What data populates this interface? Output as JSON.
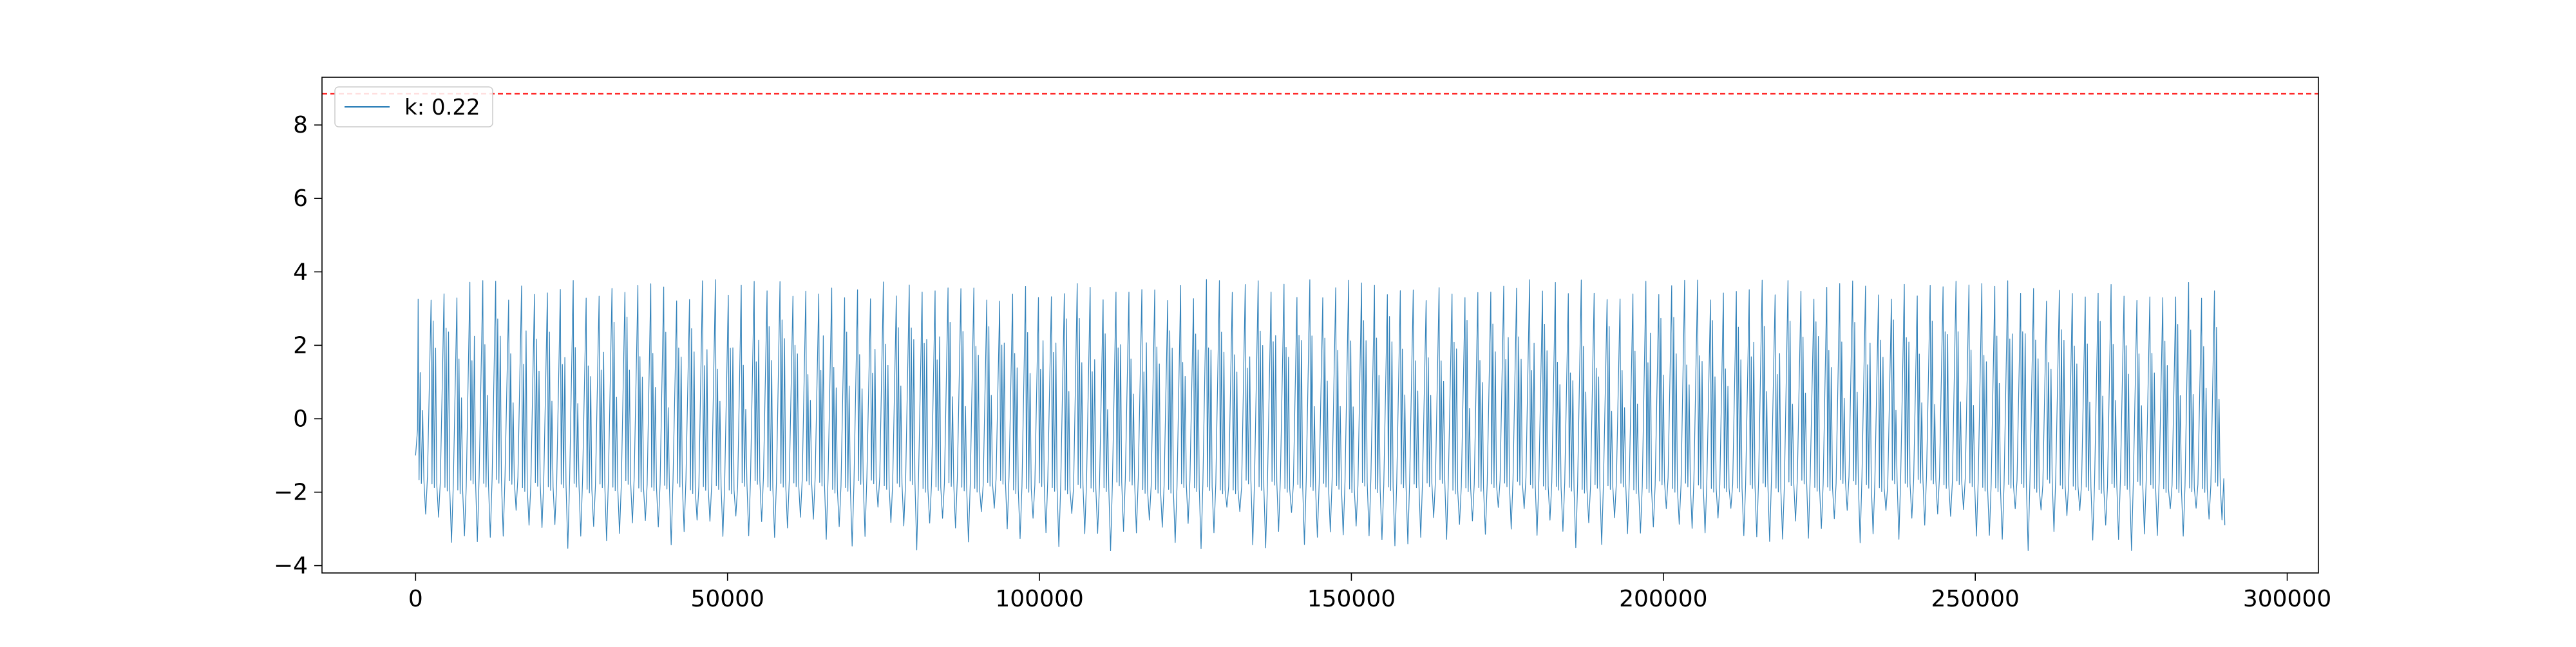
{
  "chart_data": {
    "type": "line",
    "title": "",
    "xlabel": "",
    "ylabel": "",
    "xlim": [
      -15000,
      305000
    ],
    "ylim": [
      -4.2,
      9.3
    ],
    "x_ticks": [
      0,
      50000,
      100000,
      150000,
      200000,
      250000,
      300000
    ],
    "x_tick_labels": [
      "0",
      "50000",
      "100000",
      "150000",
      "200000",
      "250000",
      "300000"
    ],
    "y_ticks": [
      -4,
      -2,
      0,
      2,
      4,
      6,
      8
    ],
    "y_tick_labels": [
      "−4",
      "−2",
      "0",
      "2",
      "4",
      "6",
      "8"
    ],
    "grid": false,
    "legend": {
      "position": "top-left",
      "entries": [
        "k: 0.22"
      ]
    },
    "series": [
      {
        "name": "k: 0.22",
        "color": "#1f77b4",
        "x_range": [
          0,
          290000
        ],
        "n_cycles": 140,
        "upper_envelope_approx": [
          3.2,
          3.8
        ],
        "lower_envelope_approx": [
          -3.6,
          -2.4
        ],
        "dense_band_low": -1.8,
        "start_value": -1.0,
        "end_value": -2.9
      }
    ],
    "threshold_line": {
      "y": 8.85,
      "color": "#ff0000",
      "style": "dashed"
    }
  }
}
